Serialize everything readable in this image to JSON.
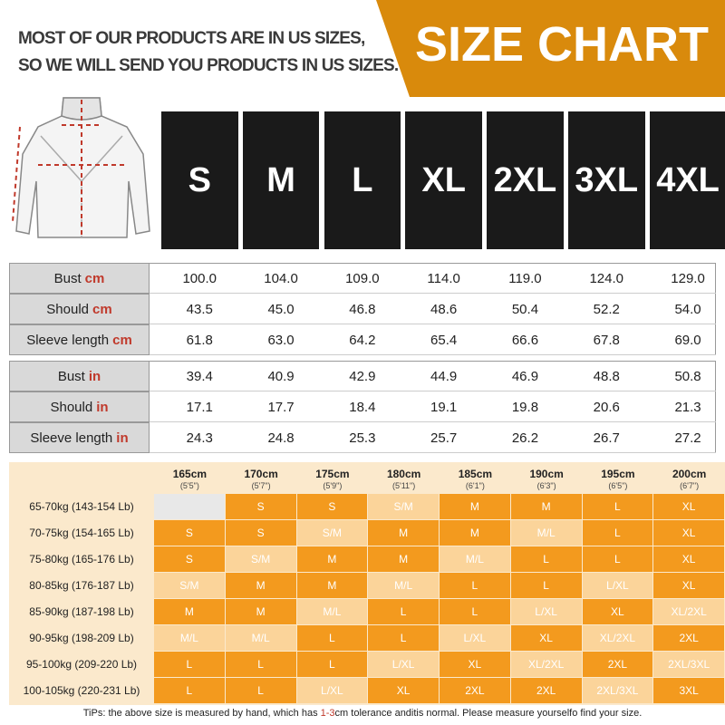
{
  "header": {
    "note": [
      "MOST OF OUR PRODUCTS ARE IN US SIZES,",
      "SO WE WILL SEND YOU PRODUCTS IN US SIZES."
    ],
    "title": "SIZE CHART"
  },
  "sizes": [
    "S",
    "M",
    "L",
    "XL",
    "2XL",
    "3XL",
    "4XL"
  ],
  "measure_tables": [
    {
      "unit": "cm",
      "rows": [
        {
          "label": "Bust",
          "values": [
            "100.0",
            "104.0",
            "109.0",
            "114.0",
            "119.0",
            "124.0",
            "129.0"
          ]
        },
        {
          "label": "Should",
          "values": [
            "43.5",
            "45.0",
            "46.8",
            "48.6",
            "50.4",
            "52.2",
            "54.0"
          ]
        },
        {
          "label": "Sleeve length",
          "values": [
            "61.8",
            "63.0",
            "64.2",
            "65.4",
            "66.6",
            "67.8",
            "69.0"
          ]
        }
      ]
    },
    {
      "unit": "in",
      "rows": [
        {
          "label": "Bust",
          "values": [
            "39.4",
            "40.9",
            "42.9",
            "44.9",
            "46.9",
            "48.8",
            "50.8"
          ]
        },
        {
          "label": "Should",
          "values": [
            "17.1",
            "17.7",
            "18.4",
            "19.1",
            "19.8",
            "20.6",
            "21.3"
          ]
        },
        {
          "label": "Sleeve length",
          "values": [
            "24.3",
            "24.8",
            "25.3",
            "25.7",
            "26.2",
            "26.7",
            "27.2"
          ]
        }
      ]
    }
  ],
  "fit_chart": {
    "heights": [
      {
        "cm": "165cm",
        "ft": "(5'5\")"
      },
      {
        "cm": "170cm",
        "ft": "(5'7\")"
      },
      {
        "cm": "175cm",
        "ft": "(5'9\")"
      },
      {
        "cm": "180cm",
        "ft": "(5'11\")"
      },
      {
        "cm": "185cm",
        "ft": "(6'1\")"
      },
      {
        "cm": "190cm",
        "ft": "(6'3\")"
      },
      {
        "cm": "195cm",
        "ft": "(6'5\")"
      },
      {
        "cm": "200cm",
        "ft": "(6'7\")"
      }
    ],
    "rows": [
      {
        "weight": "65-70kg (143-154 Lb)",
        "sizes": [
          null,
          "S",
          "S",
          "S/M",
          "M",
          "M",
          "L",
          "XL"
        ]
      },
      {
        "weight": "70-75kg (154-165 Lb)",
        "sizes": [
          "S",
          "S",
          "S/M",
          "M",
          "M",
          "M/L",
          "L",
          "XL"
        ]
      },
      {
        "weight": "75-80kg (165-176 Lb)",
        "sizes": [
          "S",
          "S/M",
          "M",
          "M",
          "M/L",
          "L",
          "L",
          "XL"
        ]
      },
      {
        "weight": "80-85kg (176-187 Lb)",
        "sizes": [
          "S/M",
          "M",
          "M",
          "M/L",
          "L",
          "L",
          "L/XL",
          "XL"
        ]
      },
      {
        "weight": "85-90kg (187-198 Lb)",
        "sizes": [
          "M",
          "M",
          "M/L",
          "L",
          "L",
          "L/XL",
          "XL",
          "XL/2XL"
        ]
      },
      {
        "weight": "90-95kg (198-209 Lb)",
        "sizes": [
          "M/L",
          "M/L",
          "L",
          "L",
          "L/XL",
          "XL",
          "XL/2XL",
          "2XL"
        ]
      },
      {
        "weight": "95-100kg (209-220 Lb)",
        "sizes": [
          "L",
          "L",
          "L",
          "L/XL",
          "XL",
          "XL/2XL",
          "2XL",
          "2XL/3XL"
        ]
      },
      {
        "weight": "100-105kg (220-231 Lb)",
        "sizes": [
          "L",
          "L",
          "L/XL",
          "XL",
          "2XL",
          "2XL",
          "2XL/3XL",
          "3XL"
        ]
      }
    ]
  },
  "tips": [
    "TiPs: the above size is measured by hand, which has ",
    "1-3",
    "cm tolerance anditis normal. Please measure yourselfo find your size."
  ]
}
